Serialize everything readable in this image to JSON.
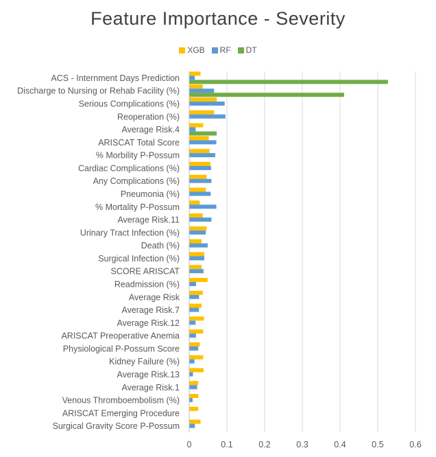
{
  "chart_data": {
    "type": "bar",
    "orientation": "horizontal",
    "title": "Feature Importance - Severity",
    "categories": [
      "ACS - Internment Days Prediction",
      "Discharge to Nursing or Rehab Facility (%)",
      "Serious Complications (%)",
      "Reoperation (%)",
      "Average Risk.4",
      "ARISCAT Total Score",
      "% Morbility P-Possum",
      "Cardiac Complications (%)",
      "Any Complications (%)",
      "Pneumonia (%)",
      "% Mortality P-Possum",
      "Average Risk.11",
      "Urinary Tract Infection (%)",
      "Death (%)",
      "Surgical Infection (%)",
      "SCORE ARISCAT",
      "Readmission (%)",
      "Average Risk",
      "Average Risk.7",
      "Average Risk.12",
      "ARISCAT Preoperative Anemia",
      "Physiological P-Possum Score",
      "Kidney Failure (%)",
      "Average Risk.13",
      "Average Risk.1",
      "Venous Thromboembolism (%)",
      "ARISCAT Emerging Procedure",
      "Surgical Gravity Score P-Possum"
    ],
    "series": [
      {
        "name": "XGB",
        "color": "#FFC000",
        "values": [
          0.03,
          0.036,
          0.073,
          0.066,
          0.037,
          0.052,
          0.054,
          0.056,
          0.046,
          0.044,
          0.028,
          0.036,
          0.046,
          0.033,
          0.04,
          0.033,
          0.049,
          0.036,
          0.033,
          0.039,
          0.037,
          0.028,
          0.037,
          0.038,
          0.024,
          0.024,
          0.024,
          0.03
        ]
      },
      {
        "name": "RF",
        "color": "#5B9BD5",
        "values": [
          0.015,
          0.066,
          0.094,
          0.096,
          0.017,
          0.072,
          0.069,
          0.058,
          0.059,
          0.057,
          0.072,
          0.059,
          0.044,
          0.049,
          0.04,
          0.038,
          0.018,
          0.026,
          0.026,
          0.017,
          0.018,
          0.024,
          0.014,
          0.01,
          0.021,
          0.009,
          0.0,
          0.015
        ]
      },
      {
        "name": "DT",
        "color": "#70AD47",
        "values": [
          0.527,
          0.411,
          0.0,
          0.0,
          0.073,
          0.0,
          0.0,
          0.0,
          0.0,
          0.0,
          0.0,
          0.0,
          0.0,
          0.0,
          0.0,
          0.0,
          0.0,
          0.0,
          0.0,
          0.0,
          0.0,
          0.0,
          0.0,
          0.0,
          0.0,
          0.0,
          0.0,
          0.0
        ]
      }
    ],
    "xlim": [
      0,
      0.6
    ],
    "xticks": [
      "0",
      "0.1",
      "0.2",
      "0.3",
      "0.4",
      "0.5",
      "0.6"
    ],
    "grid": true,
    "legend_position": "top"
  }
}
